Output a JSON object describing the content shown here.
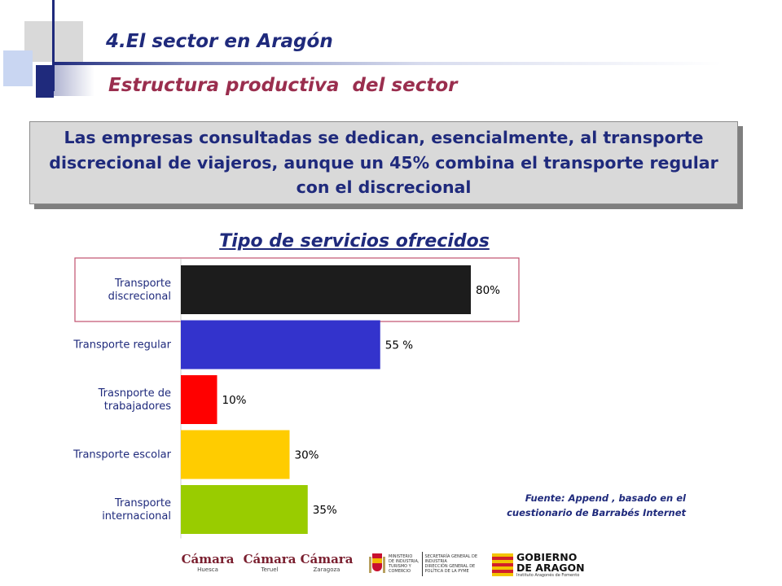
{
  "header": {
    "title": "4.El sector en Aragón",
    "subtitle": "Estructura productiva  del sector"
  },
  "callout": {
    "text": "Las empresas consultadas se dedican, esencialmente, al transporte discrecional de viajeros, aunque  un 45% combina el transporte regular con el discrecional"
  },
  "source": {
    "line1": "Fuente: Append , basado en el",
    "line2": "cuestionario de Barrabés Internet"
  },
  "logos": {
    "camara_word": "Cámara",
    "camara_huesca": "Huesca",
    "camara_teruel": "Teruel",
    "camara_zaragoza": "Zaragoza",
    "ministry_line1": "MINISTERIO",
    "ministry_line2": "DE INDUSTRIA,",
    "ministry_line3": "TURISMO Y",
    "ministry_line4": "COMERCIO",
    "ministry_sec1": "SECRETARÍA GENERAL DE",
    "ministry_sec2": "INDUSTRIA",
    "ministry_sec3": "DIRECCIÓN GENERAL DE",
    "ministry_sec4": "POLÍTICA DE LA PYME",
    "gov_line1": "GOBIERNO",
    "gov_line2": "DE ARAGON",
    "gov_sub": "Instituto Aragonés de Fomento"
  },
  "colors": {
    "navy": "#1f2a7c",
    "maroon": "#9a2e4e",
    "highlight_border": "#c0506e"
  },
  "chart_data": {
    "type": "bar",
    "orientation": "horizontal",
    "title": "Tipo de servicios ofrecidos",
    "categories": [
      [
        "Transporte",
        "discrecional"
      ],
      [
        "Transporte regular"
      ],
      [
        "Trasnporte de",
        "trabajadores"
      ],
      [
        "Transporte escolar"
      ],
      [
        "Transporte",
        "internacional"
      ]
    ],
    "values": [
      80,
      55,
      10,
      30,
      35
    ],
    "value_labels": [
      "80%",
      "55 %",
      "10%",
      "30%",
      "35%"
    ],
    "bar_colors": [
      "#1c1c1c",
      "#3333cc",
      "#ff0000",
      "#ffcc00",
      "#99cc00"
    ],
    "highlighted_category_index": 0,
    "xlim": [
      0,
      100
    ],
    "grid": false,
    "legend": "none"
  }
}
